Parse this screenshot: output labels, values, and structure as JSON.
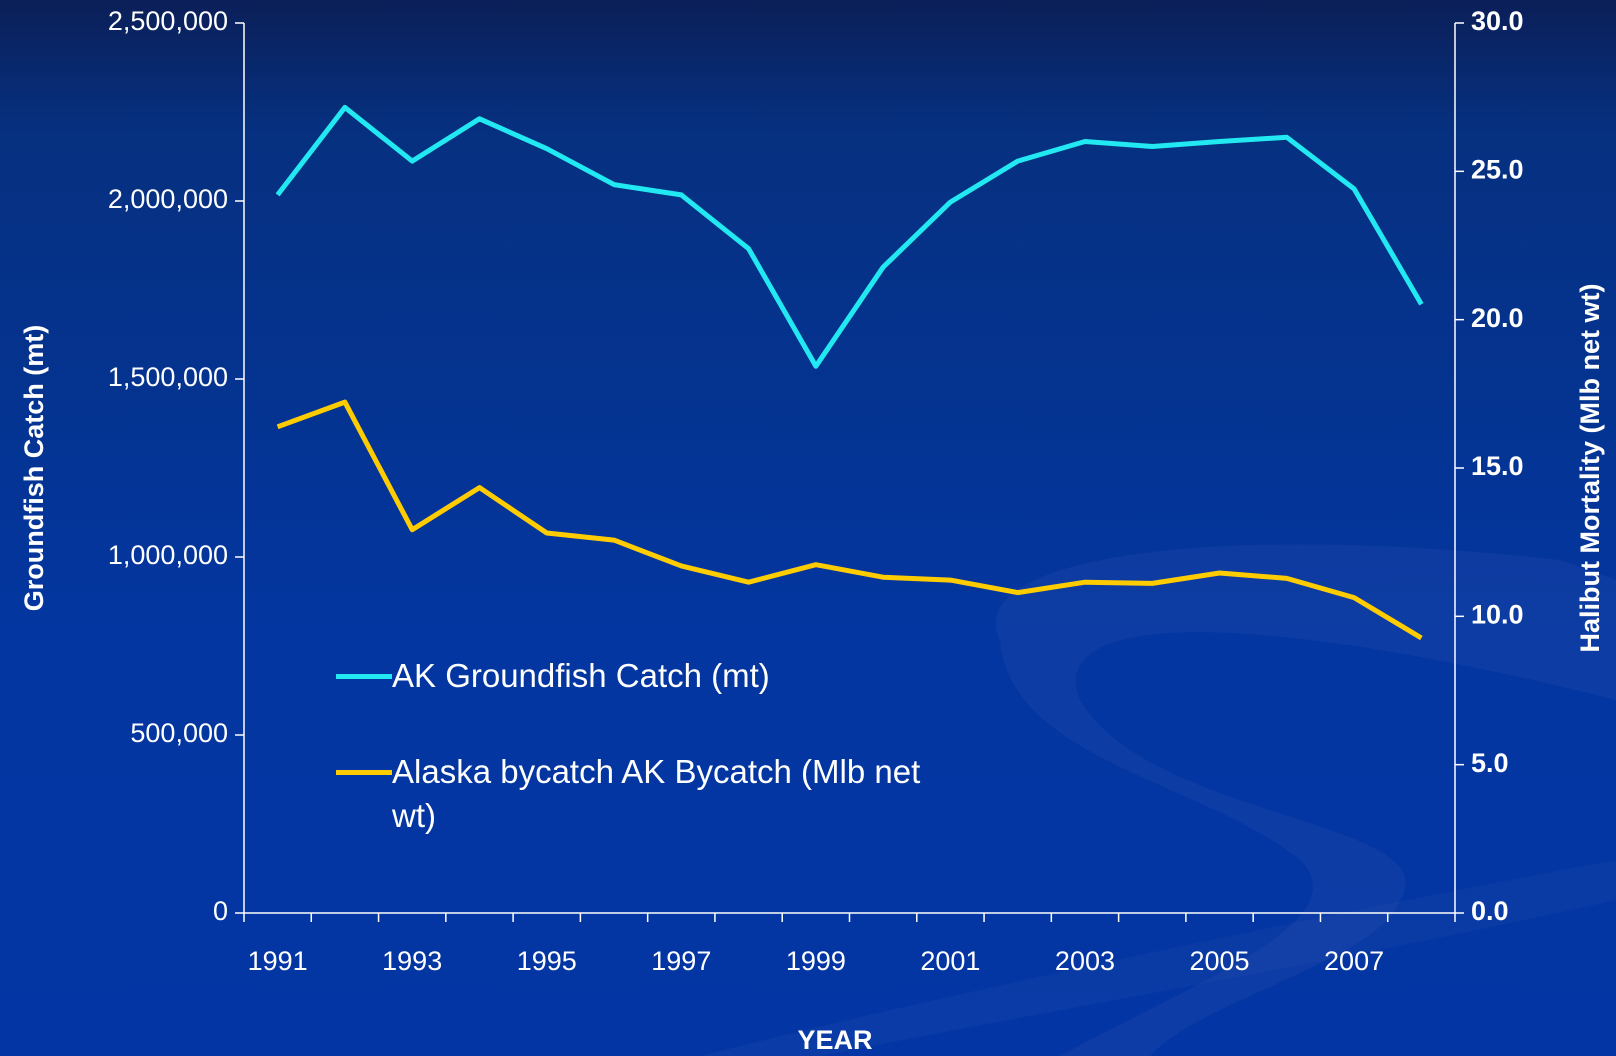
{
  "chart_data": {
    "type": "line",
    "x_label": "YEAR",
    "y_label": "Groundfish Catch  (mt)",
    "y2_label": "Halibut Mortality (Mlb net wt)",
    "categories": [
      "1991",
      null,
      "1993",
      null,
      "1995",
      null,
      "1997",
      null,
      "1999",
      null,
      "2001",
      null,
      "2003",
      null,
      "2005",
      null,
      "2007",
      null
    ],
    "series": [
      {
        "name": "AK Groundfish Catch (mt)",
        "color": "#22e8f2",
        "axis": "y",
        "values": [
          2017000,
          2263000,
          2112000,
          2231000,
          2147000,
          2046000,
          2017000,
          1866000,
          1536000,
          1814000,
          1997000,
          2112000,
          2167000,
          2153000,
          2167000,
          2179000,
          2034000,
          1710000
        ]
      },
      {
        "name": "Alaska bycatch AK Bycatch (Mlb net wt)",
        "color": "#ffcc00",
        "axis": "y2",
        "values": [
          16.39,
          17.22,
          12.92,
          14.34,
          12.81,
          12.57,
          11.7,
          11.15,
          11.74,
          11.32,
          11.22,
          10.8,
          11.15,
          11.11,
          11.46,
          11.28,
          10.63,
          9.27
        ]
      }
    ],
    "ylim": [
      0,
      2500000
    ],
    "yticks": [
      0,
      {
        "value": 500000,
        "label": "500,000"
      },
      {
        "value": 1000000,
        "label": "1,000,000"
      },
      {
        "value": 1500000,
        "label": "1,500,000"
      },
      {
        "value": 2000000,
        "label": "2,000,000"
      },
      {
        "value": 2500000,
        "label": "2,500,000"
      }
    ],
    "y2lim": [
      0,
      30
    ],
    "y2ticks": [
      {
        "value": 0,
        "label": "0.0"
      },
      {
        "value": 5,
        "label": "5.0"
      },
      {
        "value": 10,
        "label": "10.0"
      },
      {
        "value": 15,
        "label": "15.0"
      },
      {
        "value": 20,
        "label": "20.0"
      },
      {
        "value": 25,
        "label": "25.0"
      },
      {
        "value": 30,
        "label": "30.0"
      }
    ],
    "grid": false
  }
}
